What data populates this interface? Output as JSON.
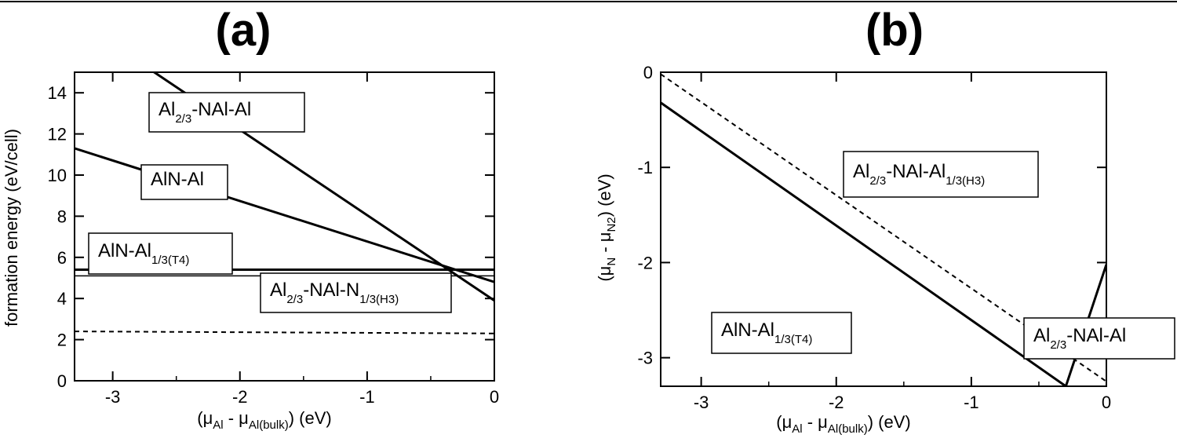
{
  "chart_data": [
    {
      "type": "line",
      "panel_label": "(a)",
      "xlabel": {
        "main": "(μ",
        "s1": "Al",
        "mid": " - μ",
        "s2": "Al(bulk)",
        "end": ") (eV)"
      },
      "ylabel": "formation energy (eV/cell)",
      "xlim": [
        -3.3,
        0
      ],
      "ylim": [
        0,
        15
      ],
      "xticks": [
        -3,
        -2,
        -1,
        0
      ],
      "yticks": [
        0,
        2,
        4,
        6,
        8,
        10,
        12,
        14
      ],
      "grid": false,
      "series": [
        {
          "x": [
            -3.3,
            0
          ],
          "y": [
            17.6,
            3.9
          ],
          "style": "solid-thick"
        },
        {
          "x": [
            -3.3,
            0
          ],
          "y": [
            11.3,
            4.8
          ],
          "style": "solid-thick"
        },
        {
          "x": [
            -3.3,
            0
          ],
          "y": [
            5.4,
            5.4
          ],
          "style": "solid-thick"
        },
        {
          "x": [
            -3.3,
            0
          ],
          "y": [
            5.1,
            5.1
          ],
          "style": "solid-thin"
        },
        {
          "x": [
            -3.3,
            0
          ],
          "y": [
            2.4,
            2.3
          ],
          "style": "dashed"
        }
      ],
      "annotations": [
        {
          "main": "Al",
          "sub": "2/3",
          "rest": "-NAl-Al",
          "sub2": ""
        },
        {
          "main": "AlN-Al",
          "sub": "",
          "rest": "",
          "sub2": ""
        },
        {
          "main": "AlN-Al",
          "sub": "1/3(T4)",
          "rest": "",
          "sub2": ""
        },
        {
          "main": "Al",
          "sub": "2/3",
          "rest": "-NAl-N",
          "sub2": "1/3(H3)"
        }
      ]
    },
    {
      "type": "line",
      "panel_label": "(b)",
      "xlabel": {
        "main": "(μ",
        "s1": "Al",
        "mid": " - μ",
        "s2": "Al(bulk)",
        "end": ") (eV)"
      },
      "ylabel": {
        "main": "(μ",
        "s1": "N",
        "mid": " - μ",
        "s2": "N2",
        "end": ") (eV)"
      },
      "xlim": [
        -3.3,
        0
      ],
      "ylim": [
        -3.3,
        0
      ],
      "xticks": [
        -3,
        -2,
        -1,
        0
      ],
      "yticks": [
        0,
        -1,
        -2,
        -3
      ],
      "grid": false,
      "series": [
        {
          "x": [
            -3.3,
            -0.3
          ],
          "y": [
            -0.32,
            -3.3
          ],
          "style": "solid-thick"
        },
        {
          "x": [
            -0.3,
            0
          ],
          "y": [
            -3.3,
            -2.02
          ],
          "style": "solid-thick"
        },
        {
          "x": [
            -3.3,
            0
          ],
          "y": [
            -0.02,
            -3.25
          ],
          "style": "dashed"
        }
      ],
      "annotations": [
        {
          "main": "Al",
          "sub": "2/3",
          "rest": "-NAl-Al",
          "sub2": "1/3(H3)"
        },
        {
          "main": "AlN-Al",
          "sub": "1/3(T4)",
          "rest": "",
          "sub2": ""
        },
        {
          "main": "Al",
          "sub": "2/3",
          "rest": "-NAl-Al",
          "sub2": ""
        }
      ]
    }
  ]
}
